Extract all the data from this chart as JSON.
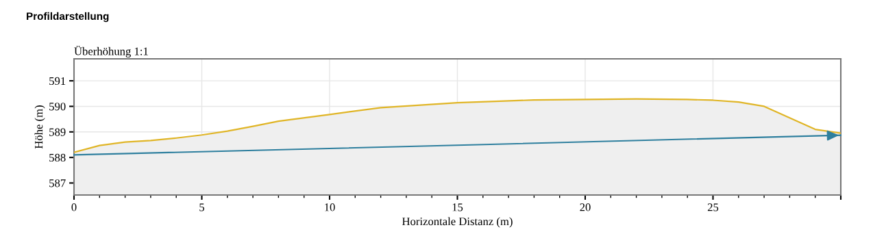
{
  "chart_data": {
    "type": "line",
    "title": "Profildarstellung",
    "subtitle": "Überhöhung 1:1",
    "xlabel": "Horizontale Distanz (m)",
    "ylabel": "Höhe (m)",
    "series": [
      {
        "type": "area",
        "color": "#e0b526",
        "x": [
          0,
          1,
          2,
          3,
          4,
          5,
          6,
          7,
          8,
          10,
          12,
          15,
          18,
          20,
          22,
          24,
          25,
          26,
          27,
          29,
          30
        ],
        "values": [
          588.2,
          588.47,
          588.6,
          588.66,
          588.76,
          588.88,
          589.03,
          589.22,
          589.42,
          589.68,
          589.95,
          590.14,
          590.25,
          590.27,
          590.29,
          590.27,
          590.24,
          590.17,
          590.0,
          589.1,
          588.95
        ]
      },
      {
        "color": "#2e7f9e",
        "x": [
          0,
          15,
          30
        ],
        "values": [
          588.1,
          588.48,
          588.87
        ]
      }
    ],
    "xlim": [
      0,
      30
    ],
    "ylim": [
      586.53,
      591.86
    ],
    "xticks": [
      0,
      5,
      10,
      15,
      20,
      25,
      {
        "value": 30,
        "label": null
      }
    ],
    "yticks": [
      587,
      588,
      589,
      590,
      591
    ],
    "grid": true
  }
}
